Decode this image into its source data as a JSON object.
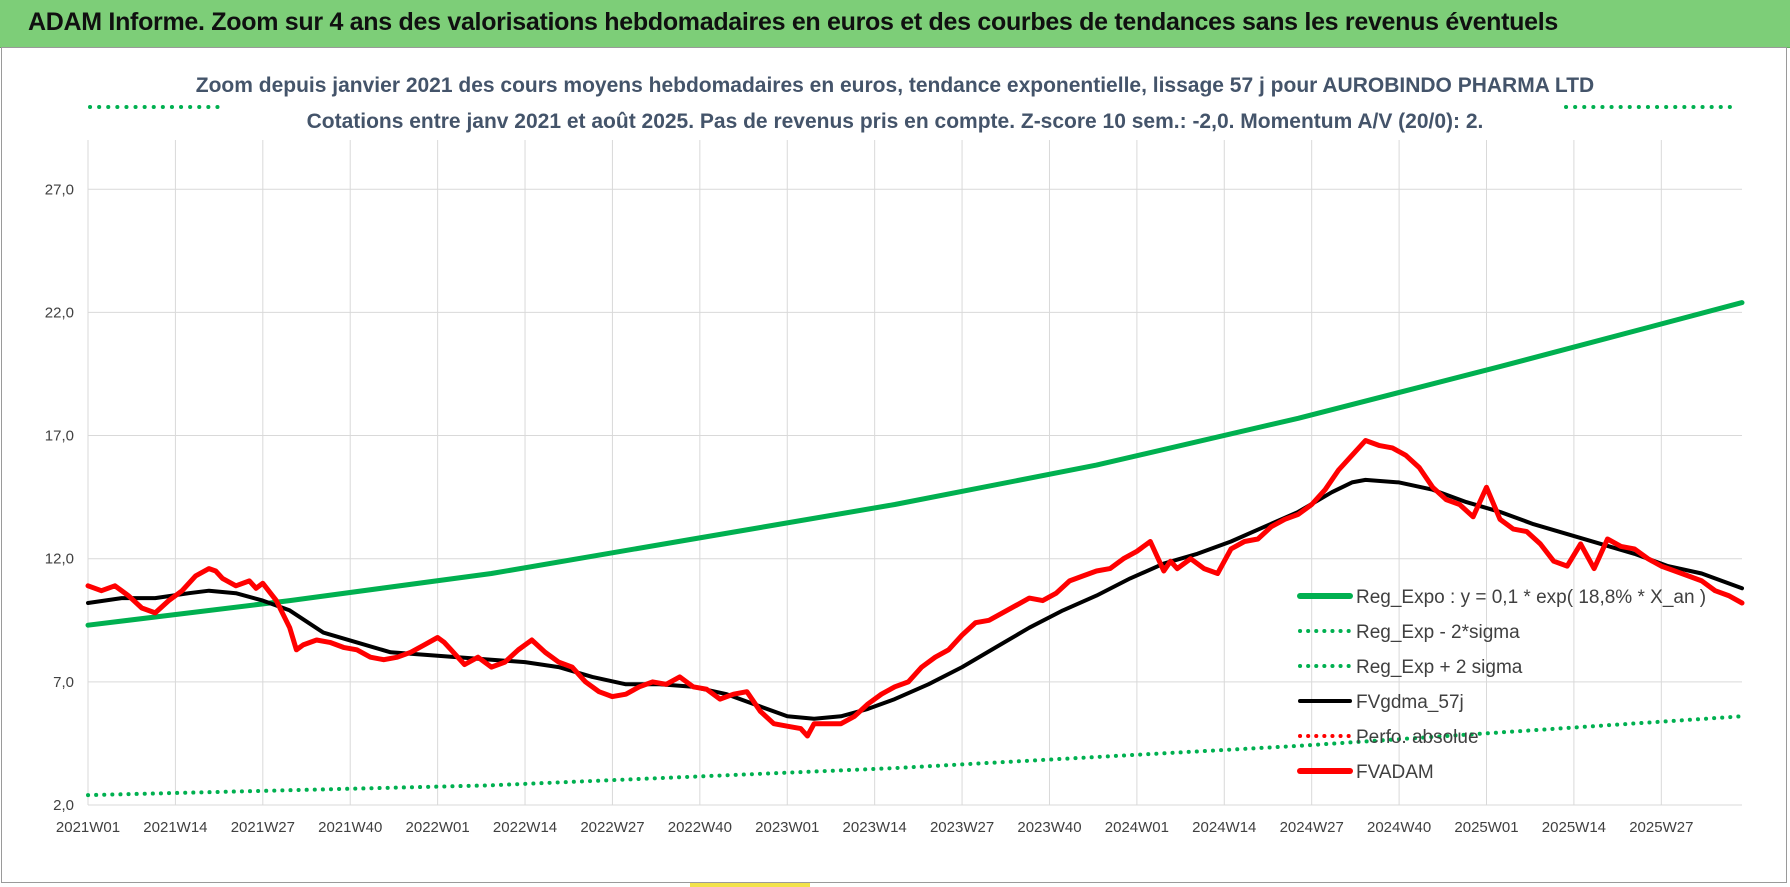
{
  "banner": {
    "title": "ADAM Informe. Zoom sur 4 ans des valorisations hebdomadaires en euros et des courbes de tendances sans les revenus éventuels",
    "color": "#7dce78"
  },
  "chart_data": {
    "type": "line",
    "title_line1": "Zoom depuis janvier 2021 des cours moyens hebdomadaires en euros, tendance exponentielle, lissage 57 j pour AUROBINDO PHARMA LTD",
    "title_line2": "Cotations entre janv 2021 et août 2025.  Pas de revenus pris en compte. Z-score 10 sem.: -2,0. Momentum A/V (20/0): 2.",
    "xlabel": "",
    "ylabel": "",
    "ylim": [
      2.0,
      29.0
    ],
    "yticks": [
      "2,0",
      "7,0",
      "12,0",
      "17,0",
      "22,0",
      "27,0"
    ],
    "ytick_values": [
      2,
      7,
      12,
      17,
      22,
      27
    ],
    "xticks": [
      "2021W01",
      "2021W14",
      "2021W27",
      "2021W40",
      "2022W01",
      "2022W14",
      "2022W27",
      "2022W40",
      "2023W01",
      "2023W14",
      "2023W27",
      "2023W40",
      "2024W01",
      "2024W14",
      "2024W27",
      "2024W40",
      "2025W01",
      "2025W14",
      "2025W27"
    ],
    "xtick_weeks": [
      0,
      13,
      26,
      39,
      52,
      65,
      78,
      91,
      104,
      117,
      130,
      143,
      156,
      169,
      182,
      195,
      208,
      221,
      234
    ],
    "x_max_week": 246,
    "grid": true,
    "legend_position": "bottom-right",
    "series": [
      {
        "name": "Reg_Expo : y = 0,1 * exp( 18,8% *  X_an )",
        "style": "solid-thick",
        "color": "#00b050",
        "x": [
          0,
          30,
          60,
          90,
          120,
          150,
          180,
          210,
          246
        ],
        "values": [
          9.3,
          10.3,
          11.4,
          12.8,
          14.2,
          15.8,
          17.7,
          19.8,
          22.4
        ]
      },
      {
        "name": "Reg_Exp - 2*sigma",
        "style": "dotted",
        "color": "#00b050",
        "x": [
          0,
          60,
          120,
          180,
          246
        ],
        "values": [
          2.4,
          2.8,
          3.5,
          4.4,
          5.6
        ]
      },
      {
        "name": "Reg_Exp + 2 sigma",
        "style": "dotted",
        "color": "#00b050",
        "x": [],
        "values": []
      },
      {
        "name": "FVgdma_57j",
        "style": "solid",
        "color": "#000000",
        "x": [
          0,
          5,
          10,
          15,
          18,
          22,
          26,
          30,
          35,
          40,
          45,
          50,
          55,
          60,
          65,
          70,
          75,
          80,
          85,
          90,
          95,
          100,
          104,
          108,
          112,
          116,
          120,
          125,
          130,
          135,
          140,
          145,
          150,
          155,
          160,
          165,
          170,
          175,
          180,
          185,
          188,
          190,
          195,
          200,
          205,
          210,
          215,
          220,
          225,
          230,
          235,
          240,
          246
        ],
        "values": [
          10.2,
          10.4,
          10.4,
          10.6,
          10.7,
          10.6,
          10.3,
          9.9,
          9.0,
          8.6,
          8.2,
          8.1,
          8.0,
          7.9,
          7.8,
          7.6,
          7.2,
          6.9,
          6.9,
          6.8,
          6.5,
          6.0,
          5.6,
          5.5,
          5.6,
          5.9,
          6.3,
          6.9,
          7.6,
          8.4,
          9.2,
          9.9,
          10.5,
          11.2,
          11.8,
          12.2,
          12.7,
          13.3,
          13.9,
          14.7,
          15.1,
          15.2,
          15.1,
          14.8,
          14.3,
          13.9,
          13.4,
          13.0,
          12.6,
          12.2,
          11.7,
          11.4,
          10.8
        ]
      },
      {
        "name": "Perfo. absolue",
        "style": "dotted",
        "color": "#ff0000",
        "x": [],
        "values": []
      },
      {
        "name": "FVADAM",
        "style": "solid-thick",
        "color": "#ff0000",
        "x": [
          0,
          2,
          4,
          6,
          8,
          10,
          12,
          14,
          16,
          18,
          19,
          20,
          22,
          24,
          25,
          26,
          28,
          30,
          31,
          32,
          34,
          36,
          38,
          40,
          42,
          44,
          46,
          48,
          50,
          52,
          53,
          54,
          56,
          58,
          60,
          62,
          64,
          66,
          68,
          70,
          72,
          74,
          76,
          78,
          80,
          82,
          84,
          86,
          88,
          90,
          92,
          94,
          96,
          98,
          100,
          102,
          104,
          106,
          107,
          108,
          110,
          112,
          114,
          116,
          118,
          120,
          122,
          124,
          126,
          128,
          130,
          132,
          134,
          136,
          138,
          140,
          142,
          144,
          146,
          148,
          150,
          152,
          154,
          156,
          158,
          160,
          161,
          162,
          164,
          166,
          168,
          170,
          172,
          174,
          176,
          178,
          180,
          182,
          184,
          186,
          188,
          190,
          192,
          194,
          196,
          198,
          200,
          202,
          204,
          206,
          208,
          210,
          212,
          214,
          216,
          218,
          220,
          222,
          224,
          226,
          228,
          230,
          232,
          234,
          236,
          238,
          240,
          242,
          244,
          246
        ],
        "values": [
          10.9,
          10.7,
          10.9,
          10.5,
          10.0,
          9.8,
          10.3,
          10.7,
          11.3,
          11.6,
          11.5,
          11.2,
          10.9,
          11.1,
          10.8,
          11.0,
          10.3,
          9.2,
          8.3,
          8.5,
          8.7,
          8.6,
          8.4,
          8.3,
          8.0,
          7.9,
          8.0,
          8.2,
          8.5,
          8.8,
          8.6,
          8.3,
          7.7,
          8.0,
          7.6,
          7.8,
          8.3,
          8.7,
          8.2,
          7.8,
          7.6,
          7.0,
          6.6,
          6.4,
          6.5,
          6.8,
          7.0,
          6.9,
          7.2,
          6.8,
          6.7,
          6.3,
          6.5,
          6.6,
          5.8,
          5.3,
          5.2,
          5.1,
          4.8,
          5.3,
          5.3,
          5.3,
          5.6,
          6.1,
          6.5,
          6.8,
          7.0,
          7.6,
          8.0,
          8.3,
          8.9,
          9.4,
          9.5,
          9.8,
          10.1,
          10.4,
          10.3,
          10.6,
          11.1,
          11.3,
          11.5,
          11.6,
          12.0,
          12.3,
          12.7,
          11.5,
          11.9,
          11.6,
          12.0,
          11.6,
          11.4,
          12.4,
          12.7,
          12.8,
          13.3,
          13.6,
          13.8,
          14.2,
          14.8,
          15.6,
          16.2,
          16.8,
          16.6,
          16.5,
          16.2,
          15.7,
          14.9,
          14.4,
          14.2,
          13.7,
          14.9,
          13.6,
          13.2,
          13.1,
          12.6,
          11.9,
          11.7,
          12.6,
          11.6,
          12.8,
          12.5,
          12.4,
          12.0,
          11.7,
          11.5,
          11.3,
          11.1,
          10.7,
          10.5,
          10.2
        ]
      }
    ]
  }
}
